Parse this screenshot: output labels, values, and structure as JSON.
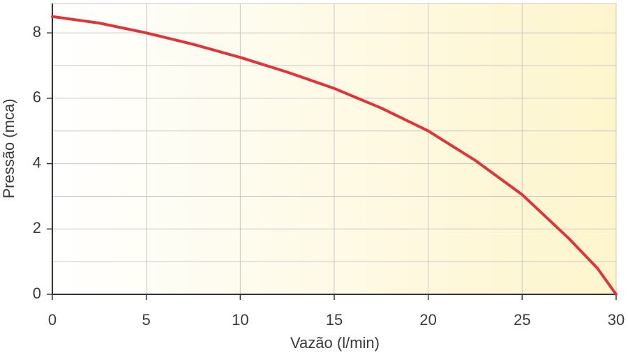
{
  "chart_data": {
    "type": "line",
    "x_label": "Vazão (l/min)",
    "y_label": "Pressão (mca)",
    "series": [
      {
        "color": "#e0333a",
        "x": [
          0,
          2.5,
          5,
          7.5,
          10,
          12.5,
          15,
          17.5,
          20,
          22.5,
          25,
          27.5,
          29,
          30
        ],
        "values": [
          8.5,
          8.3,
          8.0,
          7.65,
          7.25,
          6.8,
          6.3,
          5.7,
          5.0,
          4.1,
          3.05,
          1.7,
          0.8,
          0
        ]
      }
    ],
    "xlim": [
      0,
      30
    ],
    "xticks": [
      0,
      5,
      10,
      15,
      20,
      25,
      30
    ],
    "ylim": [
      0,
      8.9
    ],
    "yticks": [
      0,
      2,
      4,
      6,
      8
    ],
    "y_minor_grid": [
      1,
      3,
      5,
      7
    ],
    "grid": true
  }
}
